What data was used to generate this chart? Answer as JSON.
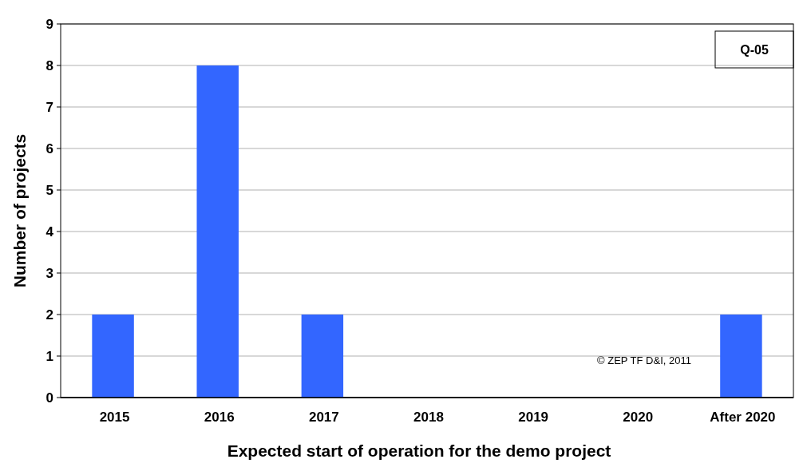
{
  "chart_data": {
    "type": "bar",
    "xlabel": "Expected start of operation for the demo project",
    "ylabel": "Number of projects",
    "categories": [
      "2015",
      "2016",
      "2017",
      "2018",
      "2019",
      "2020",
      "After 2020"
    ],
    "values": [
      2,
      8,
      2,
      0,
      0,
      0,
      2
    ],
    "color": "#3366ff",
    "ylim": [
      0,
      9
    ],
    "yticks": [
      0,
      1,
      2,
      3,
      4,
      5,
      6,
      7,
      8,
      9
    ],
    "grid": "y",
    "annotations": [
      "Q-05",
      "© ZEP TF D&I, 2011"
    ]
  }
}
